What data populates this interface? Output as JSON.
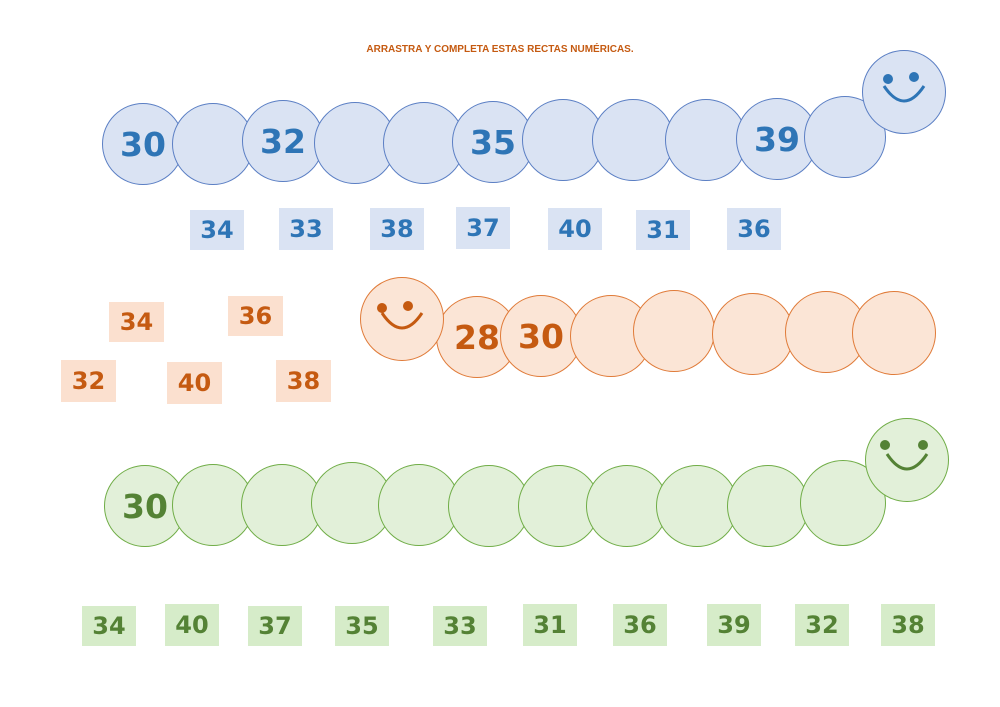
{
  "title": "ARRASTRA Y COMPLETA ESTAS RECTAS NUMÉRICAS.",
  "colors": {
    "title": "#c55a11",
    "blue_fill": "#dae3f3",
    "blue_border": "#5b7fc4",
    "blue_text": "#2e75b6",
    "blue_tile": "#dae3f3",
    "orange_fill": "#fbe5d6",
    "orange_border": "#e07b39",
    "orange_text": "#c55a11",
    "orange_tile": "#fbe0cf",
    "green_fill": "#e2f0d9",
    "green_border": "#70ad47",
    "green_text": "#548235",
    "green_tile": "#d6ecc9"
  },
  "blue_caterpillar": {
    "circles": [
      "30",
      "",
      "32",
      "",
      "",
      "35",
      "",
      "",
      "",
      "39",
      ""
    ],
    "head_icon": "smiley-face-icon"
  },
  "blue_tiles": [
    "34",
    "33",
    "38",
    "37",
    "40",
    "31",
    "36"
  ],
  "orange_caterpillar": {
    "circles": [
      "28",
      "30",
      "",
      "",
      "",
      "",
      ""
    ],
    "head_icon": "smiley-face-icon"
  },
  "orange_tiles": [
    "34",
    "36",
    "32",
    "40",
    "38"
  ],
  "green_caterpillar": {
    "circles": [
      "30",
      "",
      "",
      "",
      "",
      "",
      "",
      "",
      "",
      "",
      ""
    ],
    "head_icon": "smiley-face-icon"
  },
  "green_tiles": [
    "34",
    "40",
    "37",
    "35",
    "33",
    "31",
    "36",
    "39",
    "32",
    "38"
  ]
}
